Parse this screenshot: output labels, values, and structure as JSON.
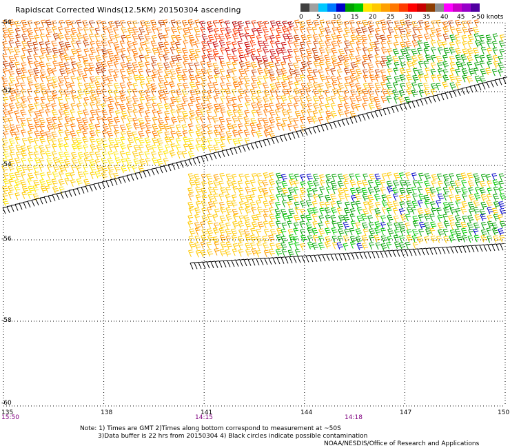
{
  "title": "Rapidscat Corrected Winds(12.5KM) 20150304 ascending",
  "colorbar": {
    "labels": [
      "0",
      "5",
      "10",
      "15",
      "20",
      "25",
      "30",
      "35",
      "40",
      "45",
      ">50 knots"
    ],
    "colors": [
      "#404040",
      "#a0a0a0",
      "#00c8ff",
      "#0078ff",
      "#0000c8",
      "#00a000",
      "#00c800",
      "#ffe600",
      "#ffc800",
      "#ffa000",
      "#ff7800",
      "#ff3c00",
      "#ff0000",
      "#c80000",
      "#8c3c00",
      "#8c8c8c",
      "#ff00ff",
      "#c800c8",
      "#9600c8",
      "#5000a0"
    ]
  },
  "latitude_labels": [
    "-50",
    "-52",
    "-54",
    "-56",
    "-58",
    "-60"
  ],
  "longitude_labels": [
    "135",
    "138",
    "141",
    "144",
    "147",
    "150"
  ],
  "time_labels": [
    "15:50",
    "14:15",
    "14:18"
  ],
  "notes": [
    "Note: 1) Times are GMT 2)Times along bottom correspond to measurement at ~50S",
    "3)Data buffer is 22 hrs from 20150304 4) Black circles indicate possible contamination"
  ],
  "credit": "NOAA/NESDIS/Office of Research and Applications",
  "map": {
    "lat_range": [
      -60,
      -50
    ],
    "lon_range": [
      135,
      150
    ],
    "grid": true
  }
}
